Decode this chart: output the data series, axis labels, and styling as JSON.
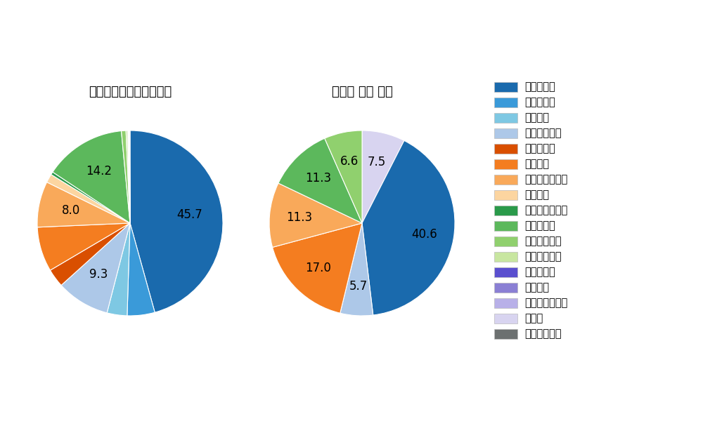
{
  "left_title": "パ・リーグ全プレイヤー",
  "right_title": "長谷川 信哉 選手",
  "pitch_types": [
    "ストレート",
    "ツーシーム",
    "シュート",
    "カットボール",
    "スプリット",
    "フォーク",
    "チェンジアップ",
    "シンカー",
    "高速スライダー",
    "スライダー",
    "縦スライダー",
    "パワーカーブ",
    "スクリュー",
    "ナックル",
    "ナックルカーブ",
    "カーブ",
    "スローカーブ"
  ],
  "colors": [
    "#1a6aad",
    "#3a9ad9",
    "#7ec8e3",
    "#adc8e8",
    "#d94f00",
    "#f47d20",
    "#f9a95a",
    "#fcd5a0",
    "#2a9a4a",
    "#5cb85c",
    "#90d06e",
    "#c8e6a0",
    "#5a4fcf",
    "#8a7fd4",
    "#b8b0e8",
    "#d8d4f0",
    "#6c7070"
  ],
  "left_values": [
    45.7,
    4.8,
    3.5,
    9.3,
    3.2,
    7.8,
    8.0,
    1.5,
    0.5,
    14.2,
    0.8,
    0.3,
    0.1,
    0.1,
    0.1,
    0.1,
    0.0
  ],
  "right_segments": [
    {
      "value": 7.5,
      "color_idx": 15,
      "label": "7.5"
    },
    {
      "value": 40.6,
      "color_idx": 0,
      "label": "40.6"
    },
    {
      "value": 5.7,
      "color_idx": 3,
      "label": "5.7"
    },
    {
      "value": 17.0,
      "color_idx": 5,
      "label": "17.0"
    },
    {
      "value": 11.3,
      "color_idx": 6,
      "label": "11.3"
    },
    {
      "value": 11.3,
      "color_idx": 9,
      "label": "11.3"
    },
    {
      "value": 6.6,
      "color_idx": 10,
      "label": "6.6"
    }
  ],
  "background_color": "#ffffff",
  "text_color": "#000000",
  "label_fontsize": 12,
  "title_fontsize": 13,
  "legend_fontsize": 10.5
}
